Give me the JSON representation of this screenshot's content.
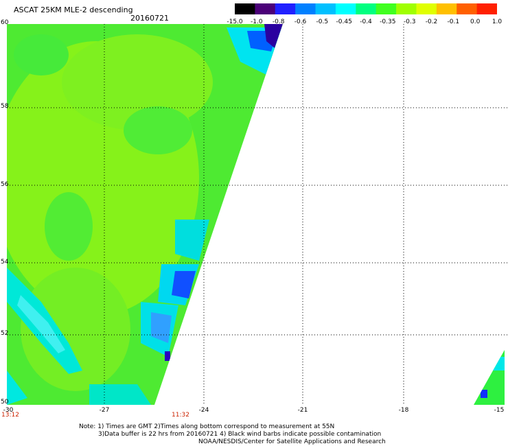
{
  "title": "ASCAT 25KM MLE-2 descending",
  "date": "20160721",
  "colorbar": {
    "labels": [
      "-15.0",
      "-1.0",
      "-0.8",
      "-0.6",
      "-0.5",
      "-0.45",
      "-0.4",
      "-0.35",
      "-0.3",
      "-0.2",
      "-0.1",
      "0.0",
      "1.0"
    ],
    "colors": [
      "#000000",
      "#4b0078",
      "#2020ff",
      "#0080ff",
      "#00c0ff",
      "#00ffff",
      "#00ff80",
      "#40ff20",
      "#a0ff00",
      "#e0ff00",
      "#ffc000",
      "#ff6000",
      "#ff2000"
    ]
  },
  "axes": {
    "lat_labels": [
      "60",
      "58",
      "56",
      "54",
      "52",
      "50"
    ],
    "lon_labels": [
      "-30",
      "-27",
      "-24",
      "-21",
      "-18",
      "-15"
    ]
  },
  "time_labels": {
    "left": "13:12",
    "right": "11:32"
  },
  "notes": [
    "Note: 1) Times are GMT 2)Times along bottom correspond to measurement at 55N",
    "3)Data buffer is 22 hrs from 20160721 4) Black wind barbs indicate possible contamination",
    "NOAA/NESDIS/Center for Satellite Applications and Research"
  ],
  "colors": {
    "swath_main": "#86f21a",
    "swath_secondary": "#3bef3b",
    "edge_cyan": "#00f0f0",
    "edge_blue": "#1060ff",
    "edge_dark": "#2000c0"
  }
}
